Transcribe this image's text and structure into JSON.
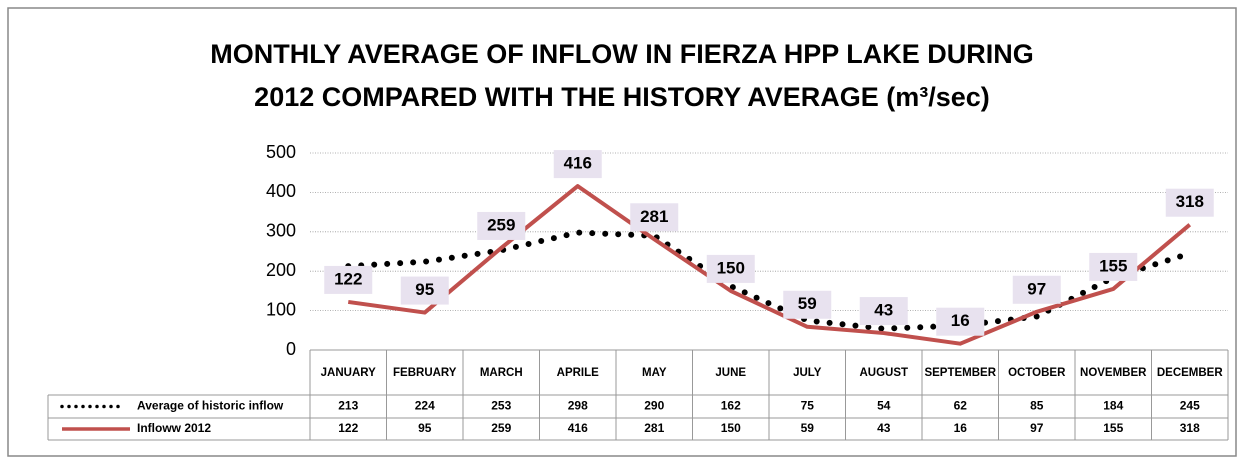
{
  "chart_data": {
    "type": "line",
    "title": [
      "MONTHLY AVERAGE OF INFLOW IN FIERZA HPP LAKE DURING",
      "2012 COMPARED WITH THE  HISTORY AVERAGE (m³/sec)"
    ],
    "categories": [
      "JANUARY",
      "FEBRUARY",
      "MARCH",
      "APRILE",
      "MAY",
      "JUNE",
      "JULY",
      "AUGUST",
      "SEPTEMBER",
      "OCTOBER",
      "NOVEMBER",
      "DECEMBER"
    ],
    "series": [
      {
        "name": "Average of historic inflow",
        "color": "#000000",
        "style": "dotted",
        "values": [
          213,
          224,
          253,
          298,
          290,
          162,
          75,
          54,
          62,
          85,
          184,
          245
        ]
      },
      {
        "name": "Infloww 2012",
        "color": "#c0504d",
        "style": "solid",
        "data_labels": true,
        "values": [
          122,
          95,
          259,
          416,
          281,
          150,
          59,
          43,
          16,
          97,
          155,
          318
        ]
      }
    ],
    "ylim": [
      0,
      500
    ],
    "yticks": [
      0,
      100,
      200,
      300,
      400,
      500
    ],
    "grid": true
  }
}
